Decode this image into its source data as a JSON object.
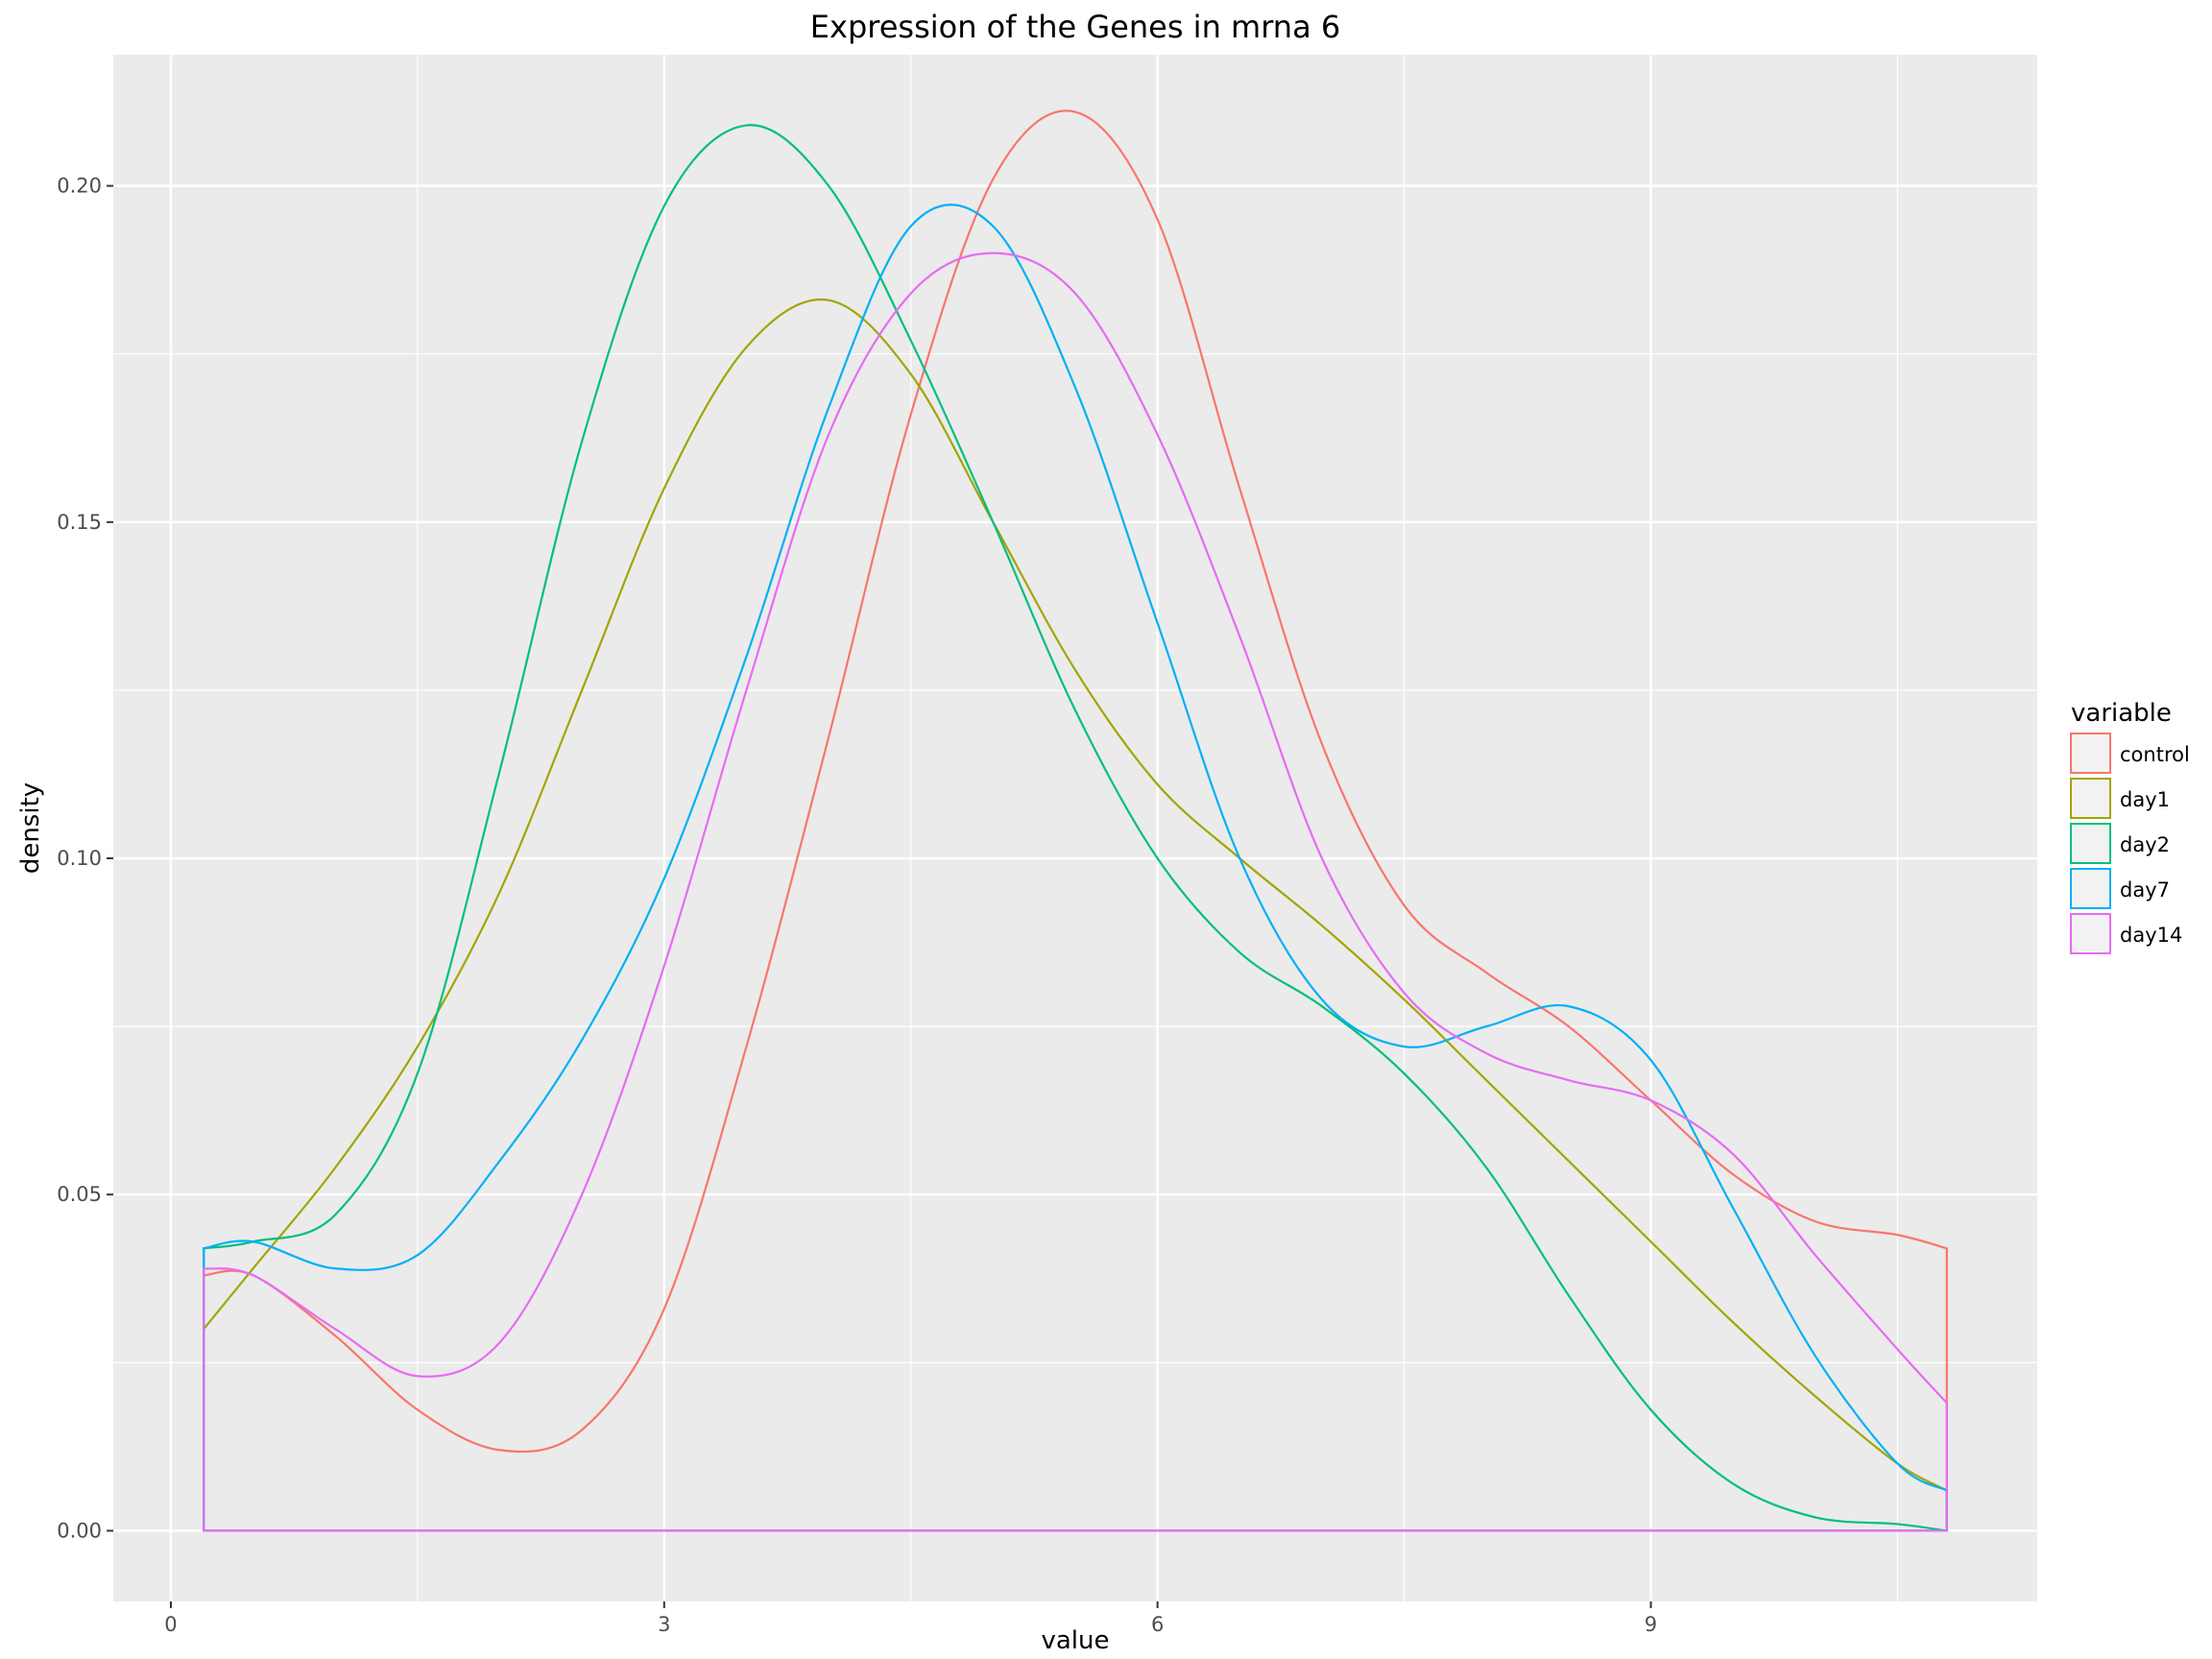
{
  "chart_data": {
    "type": "line",
    "title": "Expression of the Genes in mrna 6",
    "xlabel": "value",
    "ylabel": "density",
    "xlim": [
      -0.35,
      11.35
    ],
    "ylim": [
      -0.0105,
      0.2195
    ],
    "x_ticks": [
      0,
      3,
      6,
      9
    ],
    "x_tick_labels": [
      "0",
      "3",
      "6",
      "9"
    ],
    "y_ticks": [
      0.0,
      0.05,
      0.1,
      0.15,
      0.2
    ],
    "y_tick_labels": [
      "0.00",
      "0.05",
      "0.10",
      "0.15",
      "0.20"
    ],
    "x_minor": [
      1.5,
      4.5,
      7.5,
      10.5
    ],
    "y_minor": [
      0.025,
      0.075,
      0.125,
      0.175
    ],
    "grid": true,
    "legend_title": "variable",
    "legend_position": "right",
    "series": [
      {
        "name": "control",
        "color": "#F8766D",
        "x": [
          0.2,
          0.5,
          1.0,
          1.5,
          2.0,
          2.5,
          3.0,
          3.5,
          4.0,
          4.5,
          5.0,
          5.5,
          6.0,
          6.5,
          7.0,
          7.5,
          8.0,
          8.5,
          9.0,
          9.5,
          10.0,
          10.5,
          10.8
        ],
        "y": [
          0.038,
          0.038,
          0.029,
          0.018,
          0.012,
          0.015,
          0.033,
          0.072,
          0.118,
          0.166,
          0.201,
          0.211,
          0.195,
          0.155,
          0.117,
          0.093,
          0.083,
          0.075,
          0.064,
          0.053,
          0.046,
          0.044,
          0.042
        ]
      },
      {
        "name": "day1",
        "color": "#A3A500",
        "x": [
          0.2,
          0.5,
          1.0,
          1.5,
          2.0,
          2.5,
          3.0,
          3.5,
          4.0,
          4.5,
          5.0,
          5.5,
          6.0,
          6.5,
          7.0,
          7.5,
          8.0,
          8.5,
          9.0,
          9.5,
          10.0,
          10.5,
          10.8
        ],
        "y": [
          0.03,
          0.039,
          0.054,
          0.072,
          0.095,
          0.125,
          0.155,
          0.176,
          0.183,
          0.172,
          0.15,
          0.128,
          0.111,
          0.1,
          0.09,
          0.079,
          0.067,
          0.055,
          0.043,
          0.031,
          0.02,
          0.01,
          0.006
        ]
      },
      {
        "name": "day2",
        "color": "#00BF7D",
        "x": [
          0.2,
          0.5,
          1.0,
          1.5,
          2.0,
          2.5,
          3.0,
          3.5,
          4.0,
          4.5,
          5.0,
          5.5,
          6.0,
          6.5,
          7.0,
          7.5,
          8.0,
          8.5,
          9.0,
          9.5,
          10.0,
          10.5,
          10.8
        ],
        "y": [
          0.042,
          0.043,
          0.047,
          0.068,
          0.113,
          0.162,
          0.197,
          0.209,
          0.2,
          0.177,
          0.15,
          0.122,
          0.1,
          0.086,
          0.078,
          0.068,
          0.054,
          0.035,
          0.018,
          0.007,
          0.002,
          0.001,
          0.0
        ]
      },
      {
        "name": "day7",
        "color": "#00B0F6",
        "x": [
          0.2,
          0.5,
          1.0,
          1.5,
          2.0,
          2.5,
          3.0,
          3.5,
          4.0,
          4.5,
          5.0,
          5.5,
          6.0,
          6.5,
          7.0,
          7.5,
          8.0,
          8.5,
          9.0,
          9.5,
          10.0,
          10.5,
          10.8
        ],
        "y": [
          0.042,
          0.043,
          0.039,
          0.041,
          0.055,
          0.073,
          0.097,
          0.13,
          0.167,
          0.194,
          0.194,
          0.17,
          0.135,
          0.1,
          0.079,
          0.072,
          0.075,
          0.078,
          0.07,
          0.048,
          0.026,
          0.01,
          0.006
        ]
      },
      {
        "name": "day14",
        "color": "#E76BF3",
        "x": [
          0.2,
          0.5,
          1.0,
          1.5,
          2.0,
          2.5,
          3.0,
          3.5,
          4.0,
          4.5,
          5.0,
          5.5,
          6.0,
          6.5,
          7.0,
          7.5,
          8.0,
          8.5,
          9.0,
          9.5,
          10.0,
          10.5,
          10.8
        ],
        "y": [
          0.039,
          0.038,
          0.03,
          0.023,
          0.028,
          0.05,
          0.084,
          0.125,
          0.163,
          0.184,
          0.19,
          0.184,
          0.163,
          0.133,
          0.1,
          0.08,
          0.071,
          0.067,
          0.064,
          0.056,
          0.041,
          0.027,
          0.019
        ]
      }
    ]
  }
}
